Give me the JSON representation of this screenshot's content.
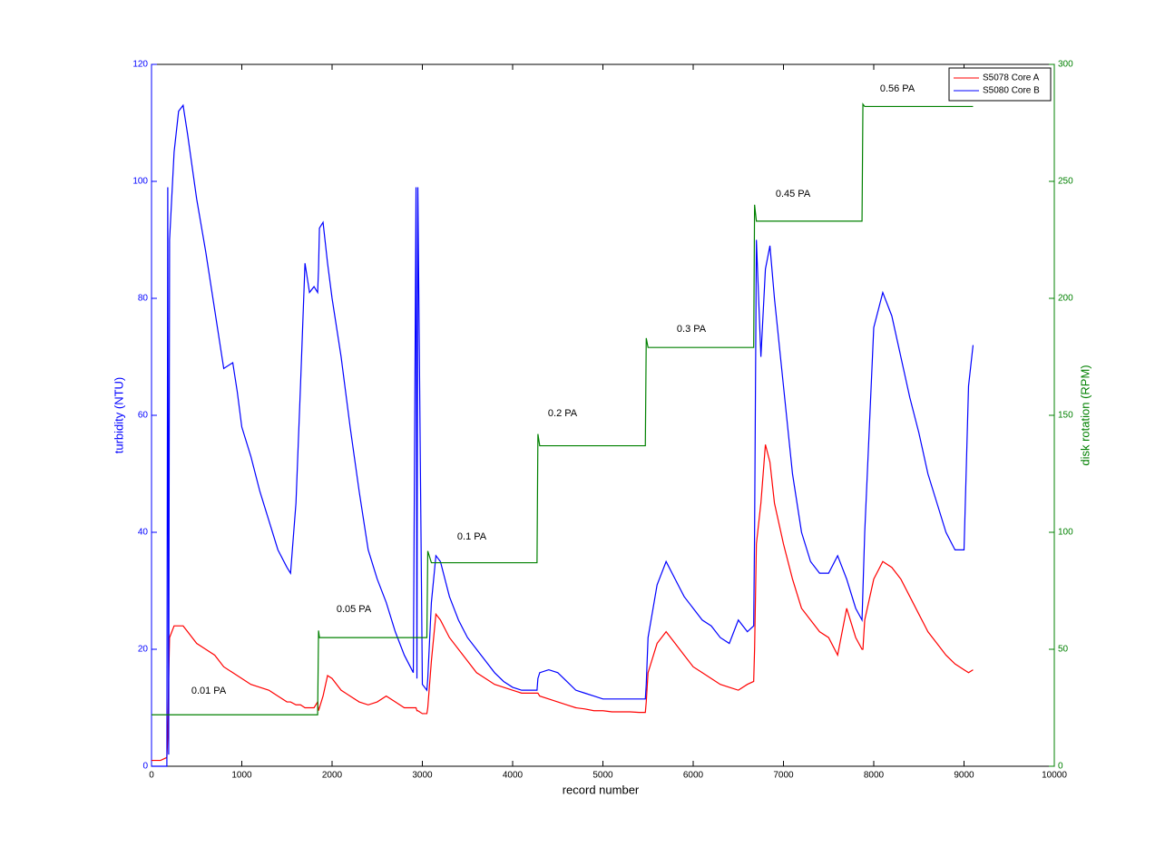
{
  "chart_data": {
    "type": "line",
    "xlabel": "record number",
    "ylabel": "turbidity (NTU)",
    "y2label": "disk rotation (RPM)",
    "xlim": [
      0,
      10000
    ],
    "xticks": [
      0,
      1000,
      2000,
      3000,
      4000,
      5000,
      6000,
      7000,
      8000,
      9000,
      10000
    ],
    "ylim": [
      0,
      120
    ],
    "yticks": [
      0,
      20,
      40,
      60,
      80,
      100,
      120
    ],
    "y2lim": [
      0,
      300
    ],
    "y2ticks": [
      0,
      50,
      100,
      150,
      200,
      250,
      300
    ],
    "ycolor": "#0000ff",
    "y2color": "#008000",
    "legend": "upper right",
    "annotations": [
      "0.01 PA",
      "0.05 PA",
      "0.1 PA",
      "0.2 PA",
      "0.3 PA",
      "0.45 PA",
      "0.56 PA"
    ],
    "x": [
      0,
      100,
      170,
      180,
      190,
      200,
      250,
      300,
      350,
      400,
      500,
      600,
      700,
      800,
      900,
      950,
      1000,
      1100,
      1200,
      1300,
      1400,
      1500,
      1540,
      1600,
      1650,
      1700,
      1750,
      1800,
      1840,
      1850,
      1860,
      1900,
      1950,
      2000,
      2100,
      2200,
      2300,
      2400,
      2500,
      2600,
      2700,
      2800,
      2900,
      2930,
      2940,
      2950,
      3000,
      3050,
      3060,
      3100,
      3150,
      3200,
      3300,
      3400,
      3500,
      3600,
      3700,
      3800,
      3900,
      4000,
      4100,
      4200,
      4270,
      4280,
      4300,
      4400,
      4500,
      4600,
      4700,
      4800,
      4900,
      5000,
      5100,
      5200,
      5300,
      5400,
      5470,
      5480,
      5500,
      5600,
      5700,
      5800,
      5900,
      6000,
      6100,
      6200,
      6300,
      6400,
      6500,
      6600,
      6670,
      6680,
      6700,
      6750,
      6800,
      6850,
      6900,
      7000,
      7100,
      7200,
      7300,
      7400,
      7500,
      7600,
      7700,
      7800,
      7870,
      7880,
      7900,
      8000,
      8100,
      8200,
      8300,
      8400,
      8500,
      8600,
      8700,
      8800,
      8900,
      9000,
      9050,
      9100
    ],
    "series": [
      {
        "name": "S5078 Core A",
        "color": "#ff0000",
        "values": [
          1,
          1,
          1.5,
          5,
          15,
          22,
          24,
          24,
          24,
          23,
          21,
          20,
          19,
          17,
          16,
          15.5,
          15,
          14,
          13.5,
          13,
          12,
          11,
          11,
          10.5,
          10.5,
          10,
          10,
          10,
          11,
          9.5,
          10,
          12,
          15.5,
          15,
          13,
          12,
          11,
          10.5,
          11,
          12,
          11,
          10,
          10,
          10,
          9.5,
          9.5,
          9,
          9,
          10,
          18,
          26,
          25,
          22,
          20,
          18,
          16,
          15,
          14,
          13.5,
          13,
          12.5,
          12.5,
          12.5,
          12.5,
          12,
          11.5,
          11,
          10.5,
          10,
          9.8,
          9.5,
          9.5,
          9.3,
          9.3,
          9.3,
          9.2,
          9.2,
          11,
          16,
          21,
          23,
          21,
          19,
          17,
          16,
          15,
          14,
          13.5,
          13,
          14,
          14.5,
          20,
          38,
          45,
          55,
          52,
          45,
          38,
          32,
          27,
          25,
          23,
          22,
          19,
          27,
          22,
          20,
          20,
          25,
          32,
          35,
          34,
          32,
          29,
          26,
          23,
          21,
          19,
          17.5,
          16.5,
          16,
          16.5
        ]
      },
      {
        "name": "S5080 Core B",
        "color": "#0000ff",
        "values": [
          0,
          0,
          0,
          99,
          2,
          90,
          105,
          112,
          113,
          108,
          97,
          88,
          78,
          68,
          69,
          64,
          58,
          53,
          47,
          42,
          37,
          34,
          33,
          45,
          65,
          86,
          81,
          82,
          81,
          85,
          92,
          93,
          86,
          80,
          70,
          58,
          47,
          37,
          32,
          28,
          23,
          19,
          16,
          99,
          15,
          99,
          14,
          13,
          15,
          28,
          36,
          35,
          29,
          25,
          22,
          20,
          18,
          16,
          14.5,
          13.5,
          13,
          13,
          13,
          15,
          16,
          16.5,
          16,
          14.5,
          13,
          12.5,
          12,
          11.5,
          11.5,
          11.5,
          11.5,
          11.5,
          11.5,
          14,
          22,
          31,
          35,
          32,
          29,
          27,
          25,
          24,
          22,
          21,
          25,
          23,
          24,
          40,
          90,
          70,
          85,
          89,
          80,
          65,
          50,
          40,
          35,
          33,
          33,
          36,
          32,
          27,
          25,
          30,
          40,
          75,
          81,
          77,
          70,
          63,
          57,
          50,
          45,
          40,
          37,
          37,
          65,
          72
        ]
      },
      {
        "color": "#008000",
        "axis": "y2",
        "values": [
          22,
          22,
          22,
          22,
          22,
          22,
          22,
          22,
          22,
          22,
          22,
          22,
          22,
          22,
          22,
          22,
          22,
          22,
          22,
          22,
          22,
          22,
          22,
          22,
          22,
          22,
          22,
          22,
          22,
          58,
          55,
          55,
          55,
          55,
          55,
          55,
          55,
          55,
          55,
          55,
          55,
          55,
          55,
          55,
          55,
          55,
          55,
          55,
          92,
          87,
          87,
          87,
          87,
          87,
          87,
          87,
          87,
          87,
          87,
          87,
          87,
          87,
          87,
          142,
          137,
          137,
          137,
          137,
          137,
          137,
          137,
          137,
          137,
          137,
          137,
          137,
          137,
          183,
          179,
          179,
          179,
          179,
          179,
          179,
          179,
          179,
          179,
          179,
          179,
          179,
          179,
          240,
          233,
          233,
          233,
          233,
          233,
          233,
          233,
          233,
          233,
          233,
          233,
          233,
          233,
          233,
          233,
          283,
          282,
          282,
          282,
          282,
          282,
          282,
          282,
          282,
          282,
          282,
          282,
          282,
          282,
          282
        ]
      }
    ]
  }
}
